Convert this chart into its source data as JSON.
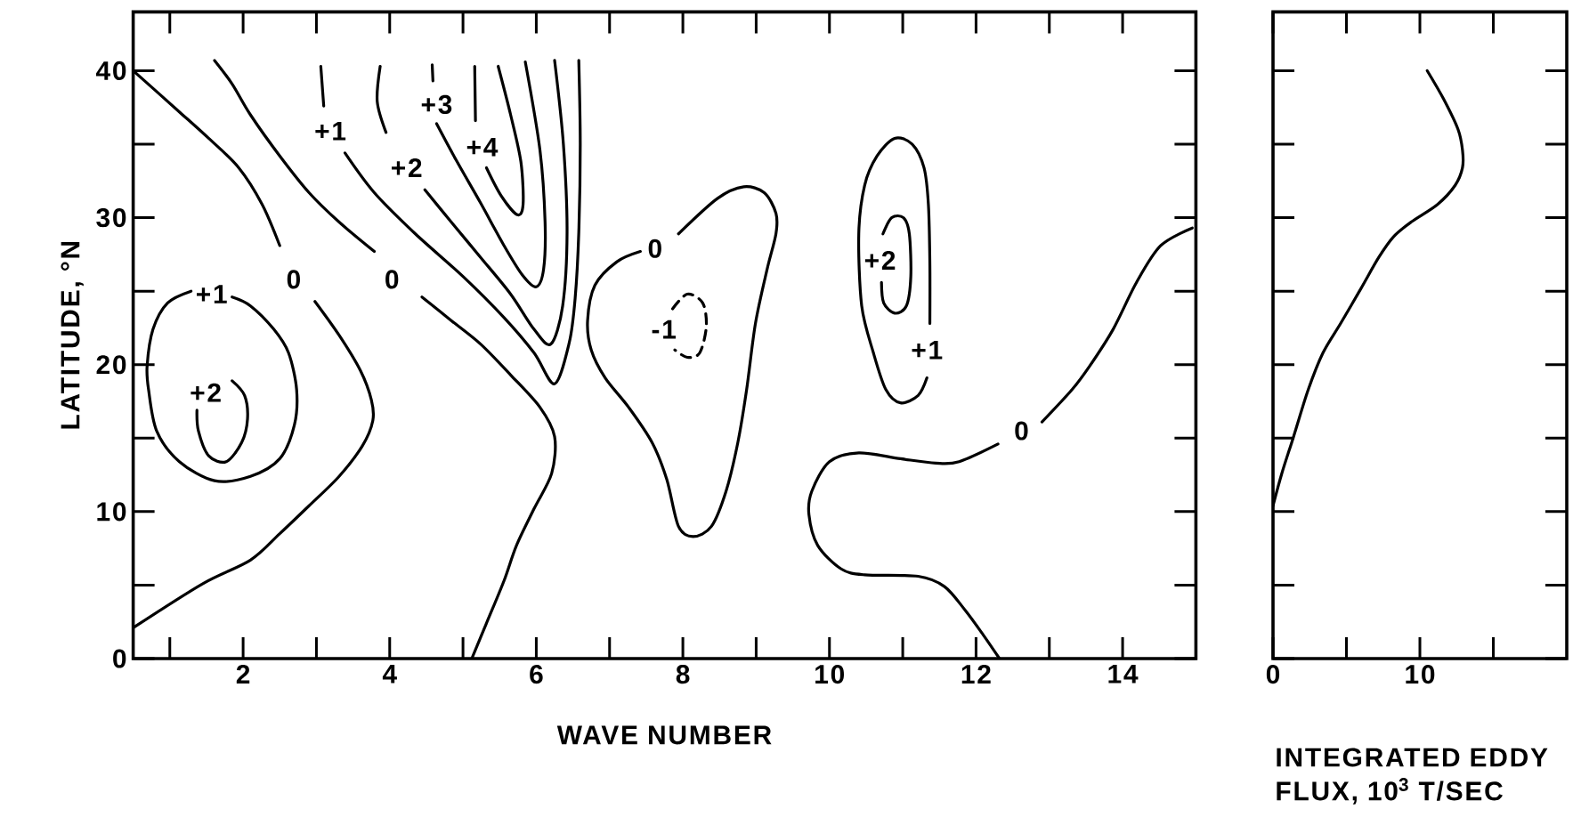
{
  "chart_data": [
    {
      "type": "line",
      "xlabel": "WAVE NUMBER",
      "ylabel": "LATITUDE, °N",
      "xlim": [
        0.5,
        15
      ],
      "ylim": [
        0,
        44
      ],
      "xticks": [
        {
          "value": 1,
          "label": null
        },
        2,
        {
          "value": 3,
          "label": null
        },
        4,
        {
          "value": 5,
          "label": null
        },
        6,
        {
          "value": 7,
          "label": null
        },
        8,
        {
          "value": 9,
          "label": null
        },
        10,
        {
          "value": 11,
          "label": null
        },
        12,
        {
          "value": 13,
          "label": null
        },
        14
      ],
      "yticks": [
        0,
        {
          "value": 5,
          "label": null
        },
        10,
        {
          "value": 15,
          "label": null
        },
        20,
        {
          "value": 25,
          "label": null
        },
        30,
        {
          "value": 35,
          "label": null
        },
        40
      ],
      "series": [
        {
          "color": "#000000",
          "x": [
            0.5,
            1.13,
            1.53,
            1.94,
            2.26,
            2.5,
            null,
            2.98,
            3.31,
            3.6,
            3.75,
            3.77,
            3.63,
            3.31,
            2.9,
            2.5,
            2.1,
            1.45,
            0.5
          ],
          "values": [
            40,
            37.2,
            35.4,
            33.4,
            30.9,
            28.1,
            null,
            24.3,
            22,
            19.6,
            17.6,
            16.2,
            14.5,
            12.4,
            10.4,
            8.5,
            6.7,
            5.1,
            2.1
          ]
        },
        {
          "color": "#000000",
          "x": [
            1.61,
            1.85,
            2.1,
            2.5,
            2.9,
            3.31,
            3.79,
            null,
            4.44,
            4.84,
            5.24,
            5.65,
            6.05,
            6.25,
            6.21,
            5.97,
            5.73,
            5.56,
            5.32,
            5.12
          ],
          "values": [
            40.7,
            39.1,
            37,
            34.2,
            31.7,
            29.7,
            27.7,
            null,
            24.6,
            23,
            21.4,
            19.3,
            17.1,
            15.1,
            12.6,
            10.2,
            7.7,
            5.3,
            2.4,
            0
          ]
        },
        {
          "color": "#000000",
          "x": [
            3.06,
            3.1,
            null,
            3.39,
            3.79,
            4.35,
            5.0,
            5.56,
            5.97,
            6.25,
            6.45,
            6.53,
            6.58,
            6.6,
            6.58
          ],
          "values": [
            40.3,
            37.6,
            null,
            34.4,
            31.7,
            28.9,
            26.0,
            23.2,
            20.8,
            18.7,
            21.5,
            24.5,
            29.0,
            35.0,
            40.7
          ]
        },
        {
          "color": "#000000",
          "x": [
            3.87,
            3.83,
            3.95,
            null,
            4.48,
            4.84,
            5.24,
            5.65,
            5.97,
            6.2,
            6.36,
            6.42,
            6.37,
            6.25
          ],
          "values": [
            40.3,
            37.9,
            35.8,
            null,
            31.9,
            29.7,
            27.3,
            24.8,
            22.4,
            21.4,
            24.0,
            29.0,
            35.0,
            40.7
          ]
        },
        {
          "color": "#000000",
          "x": [
            4.58,
            4.59,
            null,
            4.64,
            4.92,
            5.24,
            5.56,
            5.81,
            6.0,
            6.1,
            6.12,
            6.05,
            5.85
          ],
          "values": [
            40.4,
            39.3,
            null,
            36.4,
            33.8,
            31.0,
            28.1,
            26.1,
            25.3,
            26.5,
            29.7,
            34.6,
            40.6
          ]
        },
        {
          "color": "#000000",
          "x": [
            5.16,
            5.17,
            null,
            5.32,
            5.52,
            5.74,
            5.82,
            5.79,
            5.65,
            5.48
          ],
          "values": [
            40.3,
            36.6,
            null,
            33.4,
            31.5,
            30.2,
            30.9,
            33.8,
            37.0,
            40.3
          ]
        },
        {
          "color": "#000000",
          "x": [
            7.94,
            8.47,
            8.83,
            9.11,
            9.27,
            9.27,
            9.15,
            8.99,
            8.87,
            8.75,
            8.59,
            8.39,
            8.14,
            7.94,
            7.78,
            7.58,
            7.26,
            6.94,
            6.75,
            6.7,
            6.8,
            7.1,
            7.42
          ],
          "values": [
            28.9,
            31.3,
            32.1,
            31.7,
            30.3,
            28.9,
            26.5,
            22.8,
            18.3,
            14.7,
            11.4,
            9.0,
            8.3,
            9.0,
            12.2,
            14.7,
            17.1,
            19.1,
            21.0,
            23.0,
            25.4,
            27.0,
            27.7
          ]
        },
        {
          "color": "#000000",
          "line_style": "dashed",
          "x": [
            7.86,
            8.06,
            8.27,
            8.32,
            8.23,
            8.06,
            7.89
          ],
          "values": [
            23.8,
            24.8,
            24.2,
            22.6,
            20.8,
            20.5,
            21.0
          ]
        },
        {
          "color": "#000000",
          "x": [
            11.33,
            11.21,
            10.97,
            10.77,
            10.6,
            10.44,
            10.4,
            10.48,
            10.65,
            10.89,
            11.13,
            11.29,
            11.35,
            11.37,
            11.37
          ],
          "values": [
            19.1,
            17.9,
            17.4,
            18.3,
            20.8,
            24.0,
            28.9,
            32.2,
            34.2,
            35.4,
            35.0,
            33.4,
            30.9,
            26.9,
            22.8
          ]
        },
        {
          "color": "#000000",
          "x": [
            10.73,
            10.85,
            11.01,
            11.09,
            11.11,
            11.05,
            10.89,
            10.74,
            10.71
          ],
          "values": [
            28.9,
            30.0,
            30.0,
            28.9,
            26.0,
            24.0,
            23.5,
            24.2,
            25.6
          ]
        },
        {
          "color": "#000000",
          "x": [
            14.95,
            14.52,
            14.19,
            13.87,
            13.55,
            13.31,
            12.9,
            null,
            12.3,
            11.77,
            11.45,
            10.97,
            10.4,
            10.0,
            9.76,
            9.72,
            9.84,
            10.16,
            10.48,
            11.21,
            11.57,
            11.85,
            12.1,
            12.32
          ],
          "values": [
            29.3,
            28.1,
            25.6,
            22.4,
            19.9,
            18.3,
            16.1,
            null,
            14.6,
            13.4,
            13.3,
            13.6,
            14.0,
            13.4,
            11.4,
            9.8,
            7.7,
            6.1,
            5.7,
            5.6,
            4.9,
            3.3,
            1.6,
            0
          ]
        },
        {
          "color": "#000000",
          "x": [
            1.85,
            2.1,
            2.42,
            2.62,
            2.73,
            2.7,
            2.5,
            2.1,
            1.61,
            1.13,
            0.82,
            0.71,
            0.69,
            0.77,
            0.97,
            1.29
          ],
          "values": [
            24.6,
            24.0,
            22.4,
            20.8,
            18.3,
            15.9,
            13.6,
            12.4,
            12.1,
            13.4,
            15.5,
            18.3,
            19.9,
            22.4,
            24.2,
            25.0
          ]
        },
        {
          "color": "#000000",
          "x": [
            1.85,
            2.02,
            2.06,
            1.98,
            1.77,
            1.53,
            1.39,
            1.37
          ],
          "values": [
            18.9,
            17.9,
            16.3,
            14.7,
            13.4,
            13.8,
            15.5,
            16.9
          ]
        }
      ],
      "annotations": [
        "0",
        "0",
        "+1",
        "+2",
        "+3",
        "+4",
        "0",
        "-1",
        "+2",
        "+1",
        "0",
        "+1",
        "+2"
      ]
    },
    {
      "type": "line",
      "xlabel": "INTEGRATED EDDY FLUX, 10$^{3}$ T/SEC",
      "xlim": [
        0,
        20
      ],
      "ylim": [
        0,
        44
      ],
      "xticks": [
        0,
        {
          "value": 5,
          "label": null
        },
        10,
        {
          "value": 15,
          "label": null
        }
      ],
      "yticks": [
        0,
        5,
        10,
        15,
        20,
        25,
        30,
        35,
        40
      ],
      "tick_labels": "x",
      "series": [
        {
          "color": "#000000",
          "x": [
            10.5,
            11.6,
            12.6,
            12.9,
            12.9,
            12.4,
            11.2,
            9.4,
            8.2,
            7.2,
            6.0,
            4.6,
            3.4,
            2.4,
            1.4,
            0.6,
            0.0
          ],
          "values": [
            40.0,
            38.1,
            36.0,
            34.6,
            33.4,
            32.2,
            30.9,
            29.7,
            28.7,
            27.3,
            25.2,
            22.8,
            20.8,
            18.3,
            15.1,
            12.6,
            10.4
          ]
        }
      ]
    }
  ]
}
